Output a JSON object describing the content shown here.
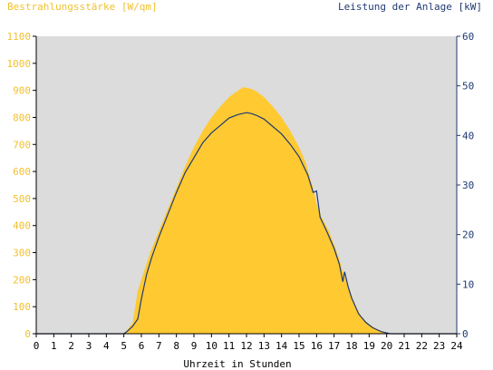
{
  "chart_data": {
    "type": "area",
    "title_left": "Bestrahlungsstärke [W/qm]",
    "title_right": "Leistung der Anlage [kW]",
    "xlabel": "Uhrzeit in Stunden",
    "xlim": [
      0,
      24
    ],
    "x_ticks": [
      "0",
      "1",
      "2",
      "3",
      "4",
      "5",
      "6",
      "7",
      "8",
      "9",
      "10",
      "11",
      "12",
      "13",
      "14",
      "15",
      "16",
      "17",
      "18",
      "19",
      "20",
      "21",
      "22",
      "23",
      "24"
    ],
    "y_left_lim": [
      0,
      1100
    ],
    "y_left_ticks": [
      "0",
      "100",
      "200",
      "300",
      "400",
      "500",
      "600",
      "700",
      "800",
      "900",
      "1000",
      "1100"
    ],
    "y_right_lim": [
      0,
      60
    ],
    "y_right_ticks": [
      "0",
      "10",
      "20",
      "30",
      "40",
      "50",
      "60"
    ],
    "grid": false,
    "series": [
      {
        "axis": "left",
        "kind": "area",
        "color": "#ffc932",
        "points": [
          [
            0,
            0
          ],
          [
            5.0,
            0
          ],
          [
            5.2,
            15
          ],
          [
            5.5,
            40
          ],
          [
            5.8,
            160
          ],
          [
            6.1,
            220
          ],
          [
            6.5,
            300
          ],
          [
            7.0,
            380
          ],
          [
            7.5,
            460
          ],
          [
            8.0,
            540
          ],
          [
            8.5,
            620
          ],
          [
            9.0,
            690
          ],
          [
            9.5,
            750
          ],
          [
            10.0,
            800
          ],
          [
            10.5,
            840
          ],
          [
            11.0,
            875
          ],
          [
            11.5,
            898
          ],
          [
            11.8,
            912
          ],
          [
            12.0,
            910
          ],
          [
            12.3,
            905
          ],
          [
            12.6,
            895
          ],
          [
            13.0,
            875
          ],
          [
            13.5,
            840
          ],
          [
            14.0,
            800
          ],
          [
            14.5,
            750
          ],
          [
            15.0,
            690
          ],
          [
            15.4,
            630
          ],
          [
            15.6,
            580
          ],
          [
            15.8,
            540
          ],
          [
            16.0,
            480
          ],
          [
            16.3,
            430
          ],
          [
            16.7,
            380
          ],
          [
            17.0,
            330
          ],
          [
            17.3,
            275
          ],
          [
            17.5,
            230
          ],
          [
            17.8,
            180
          ],
          [
            18.0,
            140
          ],
          [
            18.3,
            95
          ],
          [
            18.6,
            60
          ],
          [
            19.0,
            35
          ],
          [
            19.5,
            15
          ],
          [
            20.0,
            4
          ],
          [
            20.3,
            0
          ],
          [
            24,
            0
          ]
        ]
      },
      {
        "axis": "right",
        "kind": "line",
        "color": "#1f3a73",
        "points": [
          [
            0,
            0
          ],
          [
            5.0,
            0
          ],
          [
            5.2,
            0.5
          ],
          [
            5.5,
            1.5
          ],
          [
            5.8,
            3
          ],
          [
            6.0,
            7
          ],
          [
            6.3,
            12
          ],
          [
            6.6,
            15.5
          ],
          [
            7.0,
            19.5
          ],
          [
            7.5,
            24
          ],
          [
            8.0,
            28.5
          ],
          [
            8.5,
            32.5
          ],
          [
            9.0,
            35.5
          ],
          [
            9.5,
            38.5
          ],
          [
            10.0,
            40.5
          ],
          [
            10.5,
            42
          ],
          [
            11.0,
            43.5
          ],
          [
            11.5,
            44.2
          ],
          [
            12.0,
            44.6
          ],
          [
            12.3,
            44.4
          ],
          [
            12.6,
            44
          ],
          [
            13.0,
            43.3
          ],
          [
            13.5,
            41.8
          ],
          [
            14.0,
            40.3
          ],
          [
            14.5,
            38.2
          ],
          [
            15.0,
            35.7
          ],
          [
            15.5,
            32
          ],
          [
            15.8,
            28.5
          ],
          [
            16.0,
            28.8
          ],
          [
            16.2,
            23.5
          ],
          [
            16.6,
            20.5
          ],
          [
            17.0,
            17.2
          ],
          [
            17.3,
            14
          ],
          [
            17.5,
            10.5
          ],
          [
            17.6,
            12.5
          ],
          [
            17.8,
            9.5
          ],
          [
            18.0,
            7.2
          ],
          [
            18.4,
            4
          ],
          [
            18.8,
            2.3
          ],
          [
            19.2,
            1.2
          ],
          [
            19.7,
            0.4
          ],
          [
            20.2,
            0
          ],
          [
            24,
            0
          ]
        ]
      }
    ]
  }
}
